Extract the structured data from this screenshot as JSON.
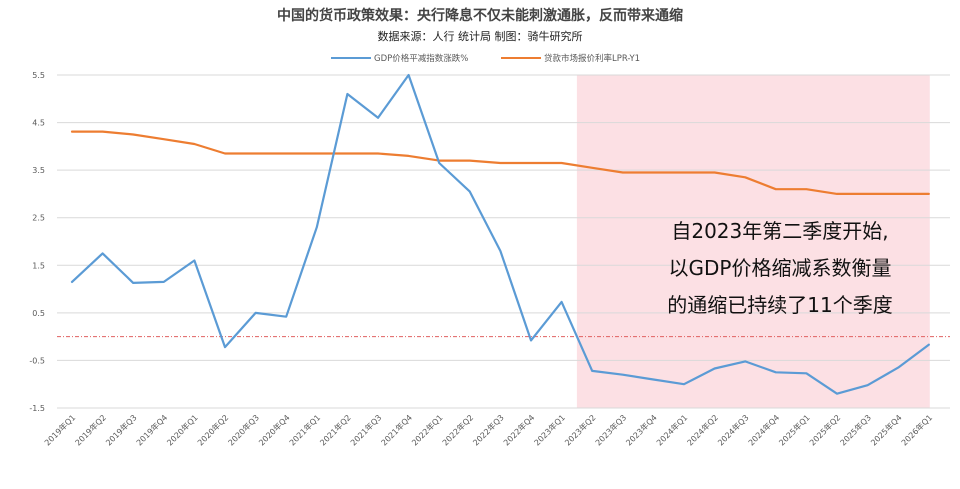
{
  "chart_data": {
    "type": "line",
    "title": "中国的货币政策效果：央行降息不仅未能刺激通胀，反而带来通缩",
    "subtitle": "数据来源：人行 统计局   制图：骑牛研究所",
    "categories": [
      "2019年Q1",
      "2019年Q2",
      "2019年Q3",
      "2019年Q4",
      "2020年Q1",
      "2020年Q2",
      "2020年Q3",
      "2020年Q4",
      "2021年Q1",
      "2021年Q2",
      "2021年Q3",
      "2021年Q4",
      "2022年Q1",
      "2022年Q2",
      "2022年Q3",
      "2022年Q4",
      "2023年Q1",
      "2023年Q2",
      "2023年Q3",
      "2023年Q4",
      "2024年Q1",
      "2024年Q2",
      "2024年Q3",
      "2024年Q4",
      "2025年Q1",
      "2025年Q2",
      "2025年Q3",
      "2025年Q4",
      "2026年Q1"
    ],
    "series": [
      {
        "name": "GDP价格平减指数涨跌%",
        "color": "#5B9BD5",
        "values": [
          1.15,
          1.75,
          1.13,
          1.15,
          1.6,
          -0.22,
          0.5,
          0.42,
          2.3,
          5.1,
          4.6,
          5.5,
          3.65,
          3.05,
          1.8,
          -0.08,
          0.73,
          -0.72,
          -0.8,
          -0.9,
          -1.0,
          -0.67,
          -0.52,
          -0.75,
          -0.77,
          -1.2,
          -1.02,
          -0.65,
          -0.17
        ]
      },
      {
        "name": "贷款市场报价利率LPR-Y1",
        "color": "#ED7D31",
        "values": [
          4.31,
          4.31,
          4.25,
          4.15,
          4.05,
          3.85,
          3.85,
          3.85,
          3.85,
          3.85,
          3.85,
          3.8,
          3.7,
          3.7,
          3.65,
          3.65,
          3.65,
          3.55,
          3.45,
          3.45,
          3.45,
          3.45,
          3.35,
          3.1,
          3.1,
          3.0,
          3.0,
          3.0,
          3.0
        ]
      }
    ],
    "ylim": [
      -1.5,
      5.5
    ],
    "yticks": [
      "5.5",
      "4.5",
      "3.5",
      "2.5",
      "1.5",
      "0.5",
      "-0.5",
      "-1.5"
    ],
    "reference_line": {
      "y": 0,
      "color": "#E06060"
    },
    "highlight": {
      "from_category": "2023年Q2",
      "to_category": "2026年Q1",
      "color": "#FCE0E4"
    },
    "annotation": [
      "自2023年第二季度开始,",
      "以GDP价格缩减系数衡量",
      "的通缩已持续了11个季度"
    ],
    "legend_position": "top-center",
    "grid": true
  }
}
